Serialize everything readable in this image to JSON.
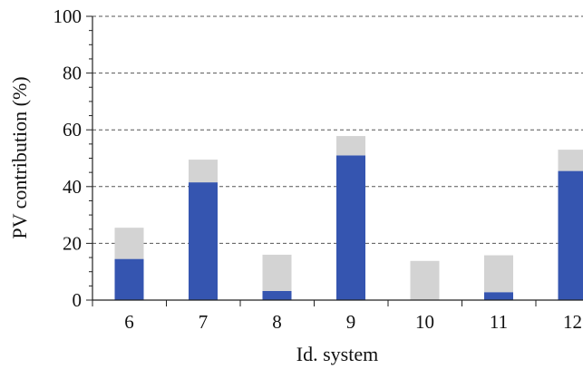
{
  "chart_data": {
    "type": "bar",
    "stacked": true,
    "categories": [
      "6",
      "7",
      "8",
      "9",
      "10",
      "11",
      "12"
    ],
    "series": [
      {
        "values": [
          14.5,
          41.5,
          3.2,
          51.0,
          0.0,
          2.8,
          45.5
        ],
        "color": "#3555b0"
      },
      {
        "values": [
          11.0,
          8.0,
          12.8,
          6.8,
          13.8,
          13.0,
          7.5
        ],
        "color": "#d3d3d3"
      }
    ],
    "xlabel": "Id. system",
    "ylabel": "PV contribution (%)",
    "ylim": [
      0,
      100
    ],
    "yticks": [
      "0",
      "20",
      "40",
      "60",
      "80",
      "100"
    ],
    "grid": true
  }
}
